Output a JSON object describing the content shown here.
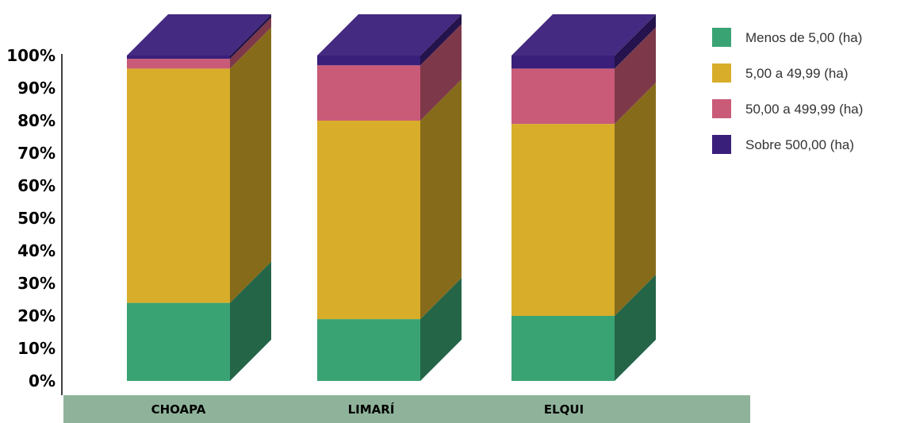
{
  "chart_data": {
    "type": "bar",
    "stacked": true,
    "three_d": true,
    "categories": [
      "CHOAPA",
      "LIMARÍ",
      "ELQUI"
    ],
    "series": [
      {
        "name": "Menos de 5,00 (ha)",
        "color": "#3aa374",
        "values": [
          24,
          19,
          20
        ]
      },
      {
        "name": "5,00 a 49,99 (ha)",
        "color": "#d8ad2a",
        "values": [
          72,
          61,
          59
        ]
      },
      {
        "name": "50,00 a 499,99 (ha)",
        "color": "#c95b78",
        "values": [
          3,
          17,
          17
        ]
      },
      {
        "name": "Sobre 500,00 (ha)",
        "color": "#3a1f7a",
        "values": [
          1,
          3,
          4
        ]
      }
    ],
    "ylim": [
      0,
      100
    ],
    "yticks": [
      "0%",
      "10%",
      "20%",
      "30%",
      "40%",
      "50%",
      "60%",
      "70%",
      "80%",
      "90%",
      "100%"
    ],
    "legend_position": "top-right",
    "grid": false,
    "base_color": "#8fb39a"
  }
}
